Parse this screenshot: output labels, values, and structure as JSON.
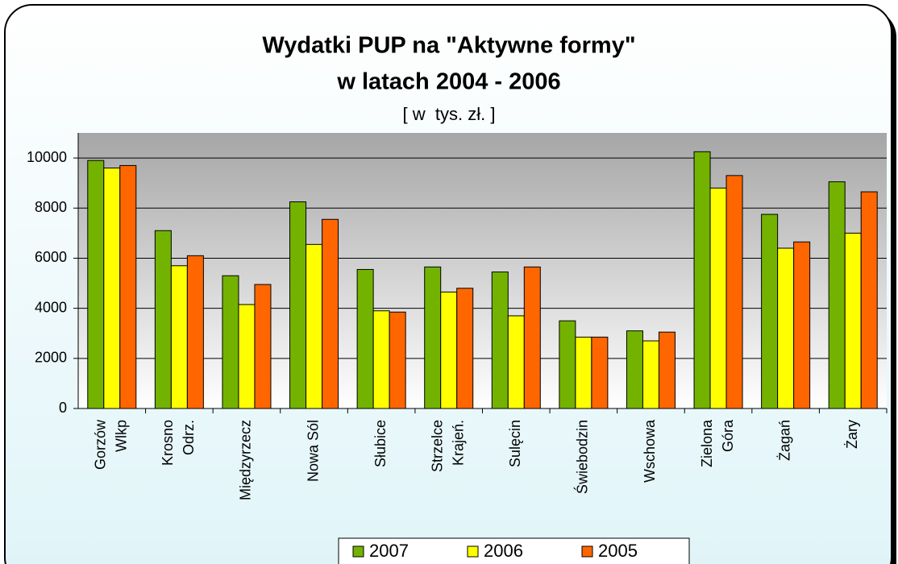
{
  "chart_data": {
    "type": "bar",
    "title": [
      "Wydatki PUP na \"Aktywne formy\"",
      "w latach 2004 - 2006"
    ],
    "subtitle": "[ w  tys. zł. ]",
    "categories": [
      [
        "Gorzów",
        "Wlkp"
      ],
      [
        "Krosno",
        "Odrz."
      ],
      [
        "Międzyrzecz"
      ],
      [
        "Nowa Sól"
      ],
      [
        "Słubice"
      ],
      [
        "Strzelce",
        "Krajeń."
      ],
      [
        "Sulęcin"
      ],
      [
        "Świebodzin"
      ],
      [
        "Wschowa"
      ],
      [
        "Zielona",
        "Góra"
      ],
      [
        "Żagań"
      ],
      [
        "Żary"
      ]
    ],
    "series": [
      {
        "name": "2007",
        "color": "#73b300",
        "values": [
          9900,
          7100,
          5300,
          8250,
          5550,
          5650,
          5450,
          3500,
          3100,
          10250,
          7750,
          9050
        ]
      },
      {
        "name": "2006",
        "color": "#ffff00",
        "values": [
          9600,
          5700,
          4150,
          6550,
          3900,
          4650,
          3700,
          2850,
          2700,
          8800,
          6400,
          7000
        ]
      },
      {
        "name": "2005",
        "color": "#ff6600",
        "values": [
          9700,
          6100,
          4950,
          7550,
          3850,
          4800,
          5650,
          2850,
          3050,
          9300,
          6650,
          8650
        ]
      }
    ],
    "ylim": [
      0,
      11000
    ],
    "yticks": [
      0,
      2000,
      4000,
      6000,
      8000,
      10000
    ],
    "grid": true,
    "legend": "bottom"
  }
}
